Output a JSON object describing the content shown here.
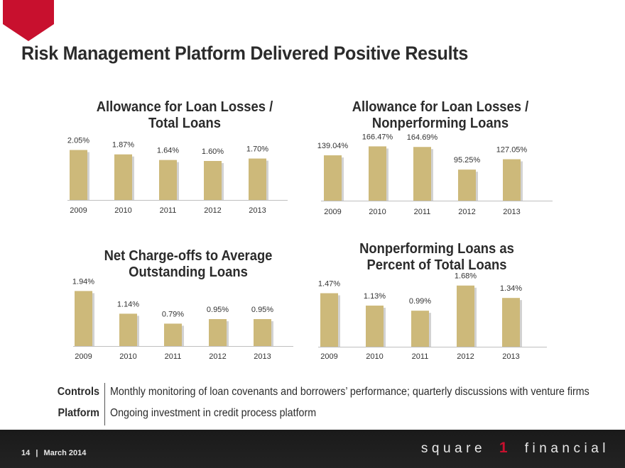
{
  "page": {
    "title": "Risk Management Platform Delivered Positive Results",
    "accent_color": "#c8102e",
    "bar_color": "#cdb97a"
  },
  "chart_data": [
    {
      "type": "bar",
      "title_lines": [
        "Allowance for Loan Losses /",
        "Total Loans"
      ],
      "categories": [
        "2009",
        "2010",
        "2011",
        "2012",
        "2013"
      ],
      "values": [
        2.05,
        1.87,
        1.64,
        1.6,
        1.7
      ],
      "labels": [
        "2.05%",
        "1.87%",
        "1.64%",
        "1.60%",
        "1.70%"
      ],
      "ylim": [
        0,
        3.2
      ]
    },
    {
      "type": "bar",
      "title_lines": [
        "Allowance for Loan Losses /",
        "Nonperforming Loans"
      ],
      "categories": [
        "2009",
        "2010",
        "2011",
        "2012",
        "2013"
      ],
      "values": [
        139.04,
        166.47,
        164.69,
        95.25,
        127.05
      ],
      "labels": [
        "139.04%",
        "166.47%",
        "164.69%",
        "95.25%",
        "127.05%"
      ],
      "ylim": [
        0,
        250
      ]
    },
    {
      "type": "bar",
      "title_lines": [
        "Net Charge-offs to Average",
        "Outstanding Loans"
      ],
      "categories": [
        "2009",
        "2010",
        "2011",
        "2012",
        "2013"
      ],
      "values": [
        1.94,
        1.14,
        0.79,
        0.95,
        0.95
      ],
      "labels": [
        "1.94%",
        "1.14%",
        "0.79%",
        "0.95%",
        "0.95%"
      ],
      "ylim": [
        0,
        2.5
      ]
    },
    {
      "type": "bar",
      "title_lines": [
        "Nonperforming Loans as",
        "Percent of Total Loans"
      ],
      "categories": [
        "2009",
        "2010",
        "2011",
        "2012",
        "2013"
      ],
      "values": [
        1.47,
        1.13,
        0.99,
        1.68,
        1.34
      ],
      "labels": [
        "1.47%",
        "1.13%",
        "0.99%",
        "1.68%",
        "1.34%"
      ],
      "ylim": [
        0,
        2.2
      ]
    }
  ],
  "bottom": {
    "controls_label": "Controls",
    "controls_text": "Monthly monitoring of loan covenants and borrowers’ performance; quarterly discussions with venture firms",
    "platform_label": "Platform",
    "platform_text": "Ongoing investment in credit process platform"
  },
  "footer": {
    "page_number": "14",
    "separator": "|",
    "date": "March 2014",
    "brand_left": "square",
    "brand_number": "1",
    "brand_right": "financial"
  }
}
